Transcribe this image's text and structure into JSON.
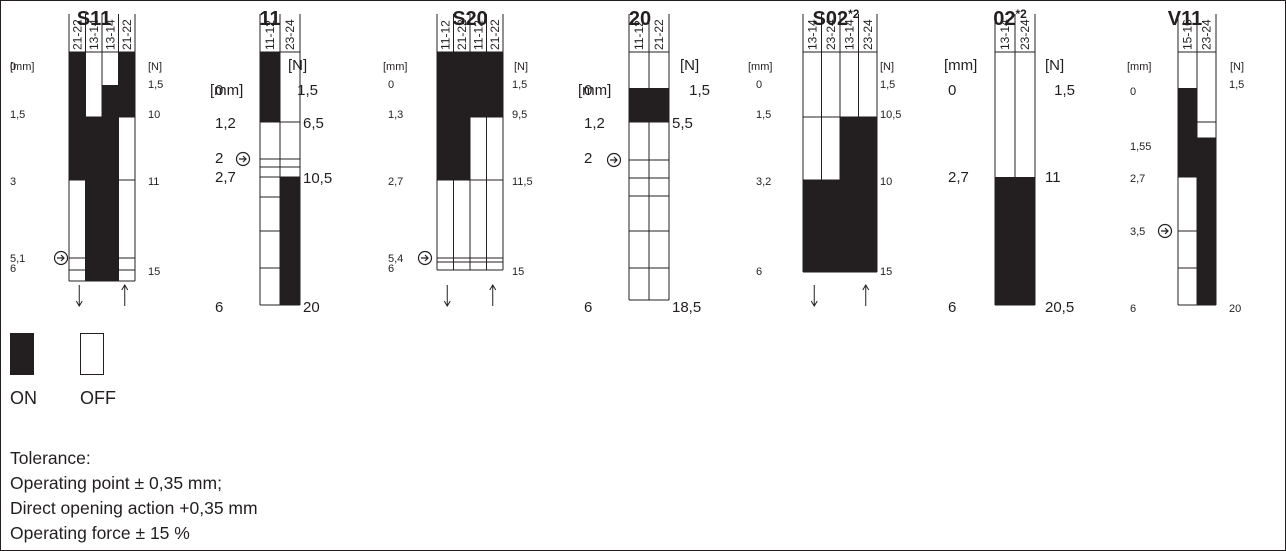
{
  "mm_unit": "[mm]",
  "n_unit": "[N]",
  "diagrams": [
    {
      "title": "S11",
      "contacts": [
        "21-22",
        "13-14",
        "13-14",
        "21-22"
      ],
      "mm_labels": [
        "0",
        "1,5",
        "3",
        "5,1",
        "6"
      ],
      "n_labels": [
        "1,5",
        "10",
        "11",
        "15"
      ],
      "direct_opening_at": "5,1",
      "arrows": [
        "down",
        "up"
      ]
    },
    {
      "title": "11",
      "contacts": [
        "11-12",
        "23-24"
      ],
      "mm_labels": [
        "0",
        "1,2",
        "2",
        "2,7",
        "6"
      ],
      "n_labels": [
        "1,5",
        "6,5",
        "10,5",
        "20"
      ],
      "direct_opening_at": "2",
      "arrows": []
    },
    {
      "title": "S20",
      "contacts": [
        "11-12",
        "21-22",
        "11-12",
        "21-22"
      ],
      "mm_labels": [
        "0",
        "1,3",
        "2,7",
        "5,4",
        "6"
      ],
      "n_labels": [
        "1,5",
        "9,5",
        "11,5",
        "15"
      ],
      "direct_opening_at": "5,4",
      "arrows": [
        "down",
        "up"
      ]
    },
    {
      "title": "20",
      "contacts": [
        "11-12",
        "21-22"
      ],
      "mm_labels": [
        "0",
        "1,2",
        "2",
        "6"
      ],
      "n_labels": [
        "1,5",
        "5,5",
        "18,5"
      ],
      "direct_opening_at": "2",
      "arrows": []
    },
    {
      "title": "S02",
      "title_sup": "*2",
      "contacts": [
        "13-14",
        "23-24",
        "13-14",
        "23-24"
      ],
      "mm_labels": [
        "0",
        "1,5",
        "3,2",
        "6"
      ],
      "n_labels": [
        "1,5",
        "10,5",
        "10",
        "15"
      ],
      "arrows": [
        "down",
        "up"
      ]
    },
    {
      "title": "02",
      "title_sup": "*2",
      "contacts": [
        "13-14",
        "23-24"
      ],
      "mm_labels": [
        "0",
        "2,7",
        "6"
      ],
      "n_labels": [
        "1,5",
        "11",
        "20,5"
      ],
      "arrows": []
    },
    {
      "title": "V11",
      "contacts": [
        "15-16",
        "23-24"
      ],
      "mm_labels": [
        "0",
        "1,55",
        "2,7",
        "3,5",
        "6"
      ],
      "n_labels": [
        "1,5",
        "20"
      ],
      "direct_opening_at": "3,5",
      "arrows": []
    }
  ],
  "legend": {
    "on": "ON",
    "off": "OFF"
  },
  "tolerance": {
    "title": "Tolerance:",
    "lines": [
      "Operating point ± 0,35 mm;",
      "Direct opening action +0,35 mm",
      "Operating force ± 15 %"
    ]
  }
}
